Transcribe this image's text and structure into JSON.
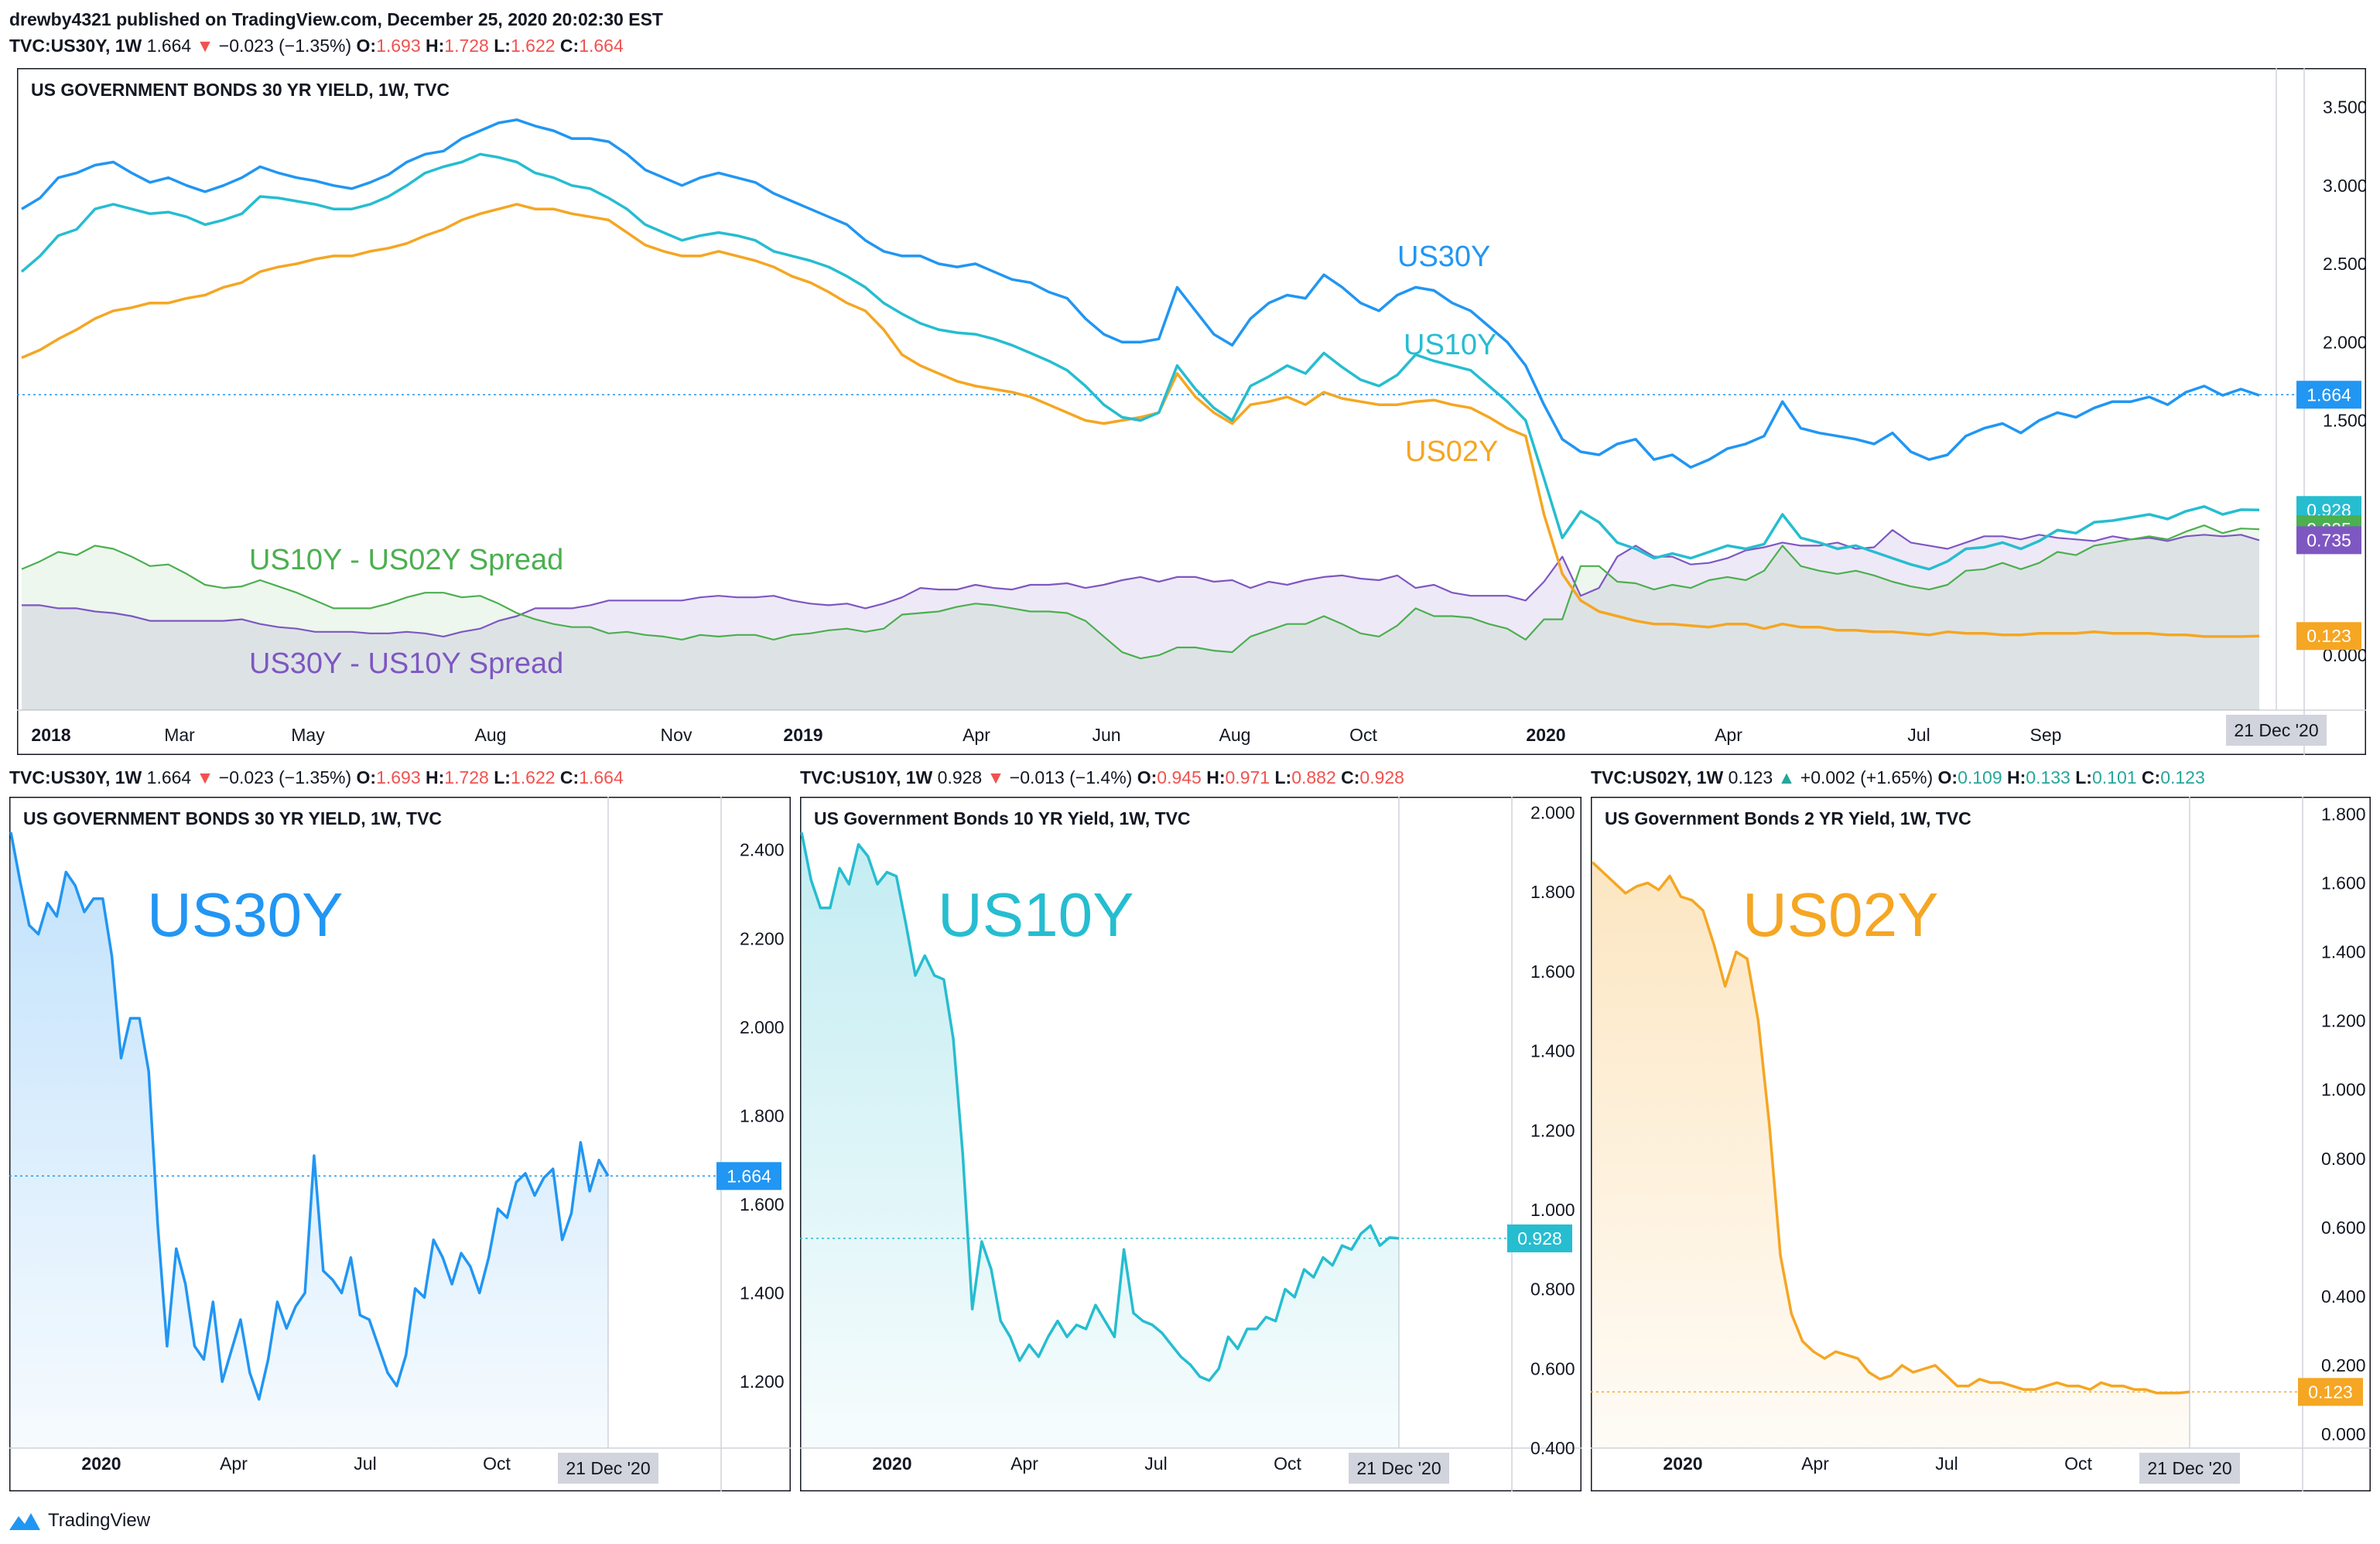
{
  "header": {
    "line1": "drewby4321 published on TradingView.com, December 25, 2020 20:02:30 EST",
    "ticker": "TVC:US30Y, 1W",
    "last": "1.664",
    "arrow": "▼",
    "change": "−0.023 (−1.35%)",
    "o_label": "O:",
    "o": "1.693",
    "h_label": "H:",
    "h": "1.728",
    "l_label": "L:",
    "l": "1.622",
    "c_label": "C:",
    "c": "1.664"
  },
  "subheaders": [
    {
      "ticker": "TVC:US30Y, 1W",
      "last": "1.664",
      "arrow": "▼",
      "change": "−0.023 (−1.35%)",
      "o": "1.693",
      "h": "1.728",
      "l": "1.622",
      "c": "1.664",
      "dir": "down"
    },
    {
      "ticker": "TVC:US10Y, 1W",
      "last": "0.928",
      "arrow": "▼",
      "change": "−0.013 (−1.4%)",
      "o": "0.945",
      "h": "0.971",
      "l": "0.882",
      "c": "0.928",
      "dir": "down"
    },
    {
      "ticker": "TVC:US02Y, 1W",
      "last": "0.123",
      "arrow": "▲",
      "change": "+0.002 (+1.65%)",
      "o": "0.109",
      "h": "0.133",
      "l": "0.101",
      "c": "0.123",
      "dir": "up"
    }
  ],
  "footer": {
    "brand": "TradingView"
  },
  "colors": {
    "us30": "#2196f3",
    "us10": "#26bdd0",
    "us02": "#f5a623",
    "spread1": "#4caf50",
    "spread2": "#7e57c2",
    "grid": "#e0e3eb",
    "text": "#131722"
  },
  "chart_data": [
    {
      "type": "line",
      "title": "US GOVERNMENT BONDS 30 YR YIELD, 1W, TVC",
      "x_labels": [
        "2018",
        "Mar",
        "May",
        "Aug",
        "Nov",
        "2019",
        "Apr",
        "Jun",
        "Aug",
        "Oct",
        "2020",
        "Apr",
        "Jul",
        "Sep"
      ],
      "cursor_label": "21 Dec '20",
      "y_ticks": [
        "3.500",
        "3.000",
        "2.500",
        "2.000",
        "1.500",
        "0.000"
      ],
      "ylim": [
        -0.35,
        3.75
      ],
      "annotations": [
        "US30Y",
        "US10Y",
        "US02Y",
        "US10Y - US02Y Spread",
        "US30Y - US10Y Spread"
      ],
      "last_values": {
        "us30": "1.664",
        "us10": "0.928",
        "spread1": "0.805",
        "spread2": "0.735",
        "us02": "0.123"
      },
      "series": [
        {
          "name": "US30Y",
          "color": "#2196f3",
          "values": [
            2.85,
            2.92,
            3.05,
            3.08,
            3.13,
            3.15,
            3.08,
            3.02,
            3.05,
            3.0,
            2.96,
            3.0,
            3.05,
            3.12,
            3.08,
            3.05,
            3.03,
            3.0,
            2.98,
            3.02,
            3.07,
            3.15,
            3.2,
            3.22,
            3.3,
            3.35,
            3.4,
            3.42,
            3.38,
            3.35,
            3.3,
            3.3,
            3.28,
            3.2,
            3.1,
            3.05,
            3.0,
            3.05,
            3.08,
            3.05,
            3.02,
            2.95,
            2.9,
            2.85,
            2.8,
            2.75,
            2.65,
            2.58,
            2.55,
            2.55,
            2.5,
            2.48,
            2.5,
            2.45,
            2.4,
            2.38,
            2.32,
            2.28,
            2.15,
            2.05,
            2.0,
            2.0,
            2.02,
            2.35,
            2.2,
            2.05,
            1.98,
            2.15,
            2.25,
            2.3,
            2.28,
            2.43,
            2.35,
            2.25,
            2.2,
            2.3,
            2.35,
            2.33,
            2.25,
            2.2,
            2.1,
            2.0,
            1.85,
            1.6,
            1.38,
            1.3,
            1.28,
            1.35,
            1.38,
            1.25,
            1.28,
            1.2,
            1.25,
            1.32,
            1.35,
            1.4,
            1.62,
            1.45,
            1.42,
            1.4,
            1.38,
            1.35,
            1.42,
            1.3,
            1.25,
            1.28,
            1.4,
            1.45,
            1.48,
            1.42,
            1.5,
            1.55,
            1.52,
            1.58,
            1.62,
            1.62,
            1.65,
            1.6,
            1.68,
            1.72,
            1.66,
            1.7,
            1.66
          ]
        },
        {
          "name": "US10Y",
          "color": "#26bdd0",
          "values": [
            2.45,
            2.55,
            2.68,
            2.72,
            2.85,
            2.88,
            2.85,
            2.82,
            2.83,
            2.8,
            2.75,
            2.78,
            2.82,
            2.93,
            2.92,
            2.9,
            2.88,
            2.85,
            2.85,
            2.88,
            2.93,
            3.0,
            3.08,
            3.12,
            3.15,
            3.2,
            3.18,
            3.15,
            3.08,
            3.05,
            3.0,
            2.98,
            2.92,
            2.85,
            2.75,
            2.7,
            2.65,
            2.68,
            2.7,
            2.68,
            2.65,
            2.58,
            2.55,
            2.52,
            2.48,
            2.42,
            2.35,
            2.25,
            2.18,
            2.12,
            2.08,
            2.06,
            2.05,
            2.02,
            1.98,
            1.93,
            1.88,
            1.82,
            1.72,
            1.6,
            1.52,
            1.5,
            1.55,
            1.85,
            1.7,
            1.58,
            1.5,
            1.72,
            1.78,
            1.85,
            1.8,
            1.93,
            1.84,
            1.76,
            1.72,
            1.79,
            1.92,
            1.88,
            1.85,
            1.82,
            1.72,
            1.62,
            1.5,
            1.13,
            0.75,
            0.92,
            0.85,
            0.72,
            0.68,
            0.62,
            0.65,
            0.62,
            0.66,
            0.7,
            0.68,
            0.71,
            0.9,
            0.75,
            0.72,
            0.68,
            0.7,
            0.66,
            0.62,
            0.58,
            0.55,
            0.6,
            0.68,
            0.69,
            0.72,
            0.68,
            0.73,
            0.8,
            0.78,
            0.85,
            0.86,
            0.88,
            0.9,
            0.87,
            0.92,
            0.95,
            0.9,
            0.93,
            0.928
          ]
        },
        {
          "name": "US02Y",
          "color": "#f5a623",
          "values": [
            1.9,
            1.95,
            2.02,
            2.08,
            2.15,
            2.2,
            2.22,
            2.25,
            2.25,
            2.28,
            2.3,
            2.35,
            2.38,
            2.45,
            2.48,
            2.5,
            2.53,
            2.55,
            2.55,
            2.58,
            2.6,
            2.63,
            2.68,
            2.72,
            2.78,
            2.82,
            2.85,
            2.88,
            2.85,
            2.85,
            2.82,
            2.8,
            2.78,
            2.7,
            2.62,
            2.58,
            2.55,
            2.55,
            2.58,
            2.55,
            2.52,
            2.48,
            2.42,
            2.38,
            2.32,
            2.25,
            2.2,
            2.08,
            1.92,
            1.85,
            1.8,
            1.75,
            1.72,
            1.7,
            1.68,
            1.65,
            1.6,
            1.55,
            1.5,
            1.48,
            1.5,
            1.52,
            1.55,
            1.8,
            1.65,
            1.55,
            1.48,
            1.6,
            1.62,
            1.65,
            1.6,
            1.68,
            1.64,
            1.62,
            1.6,
            1.6,
            1.62,
            1.63,
            1.6,
            1.58,
            1.52,
            1.45,
            1.4,
            0.9,
            0.52,
            0.35,
            0.28,
            0.25,
            0.22,
            0.2,
            0.2,
            0.19,
            0.18,
            0.2,
            0.2,
            0.17,
            0.2,
            0.18,
            0.18,
            0.16,
            0.16,
            0.15,
            0.15,
            0.14,
            0.13,
            0.15,
            0.14,
            0.14,
            0.13,
            0.13,
            0.14,
            0.14,
            0.14,
            0.15,
            0.14,
            0.14,
            0.14,
            0.13,
            0.13,
            0.12,
            0.12,
            0.12,
            0.123
          ]
        },
        {
          "name": "US10Y - US02Y Spread",
          "color": "#4caf50",
          "values": [
            0.55,
            0.6,
            0.66,
            0.64,
            0.7,
            0.68,
            0.63,
            0.57,
            0.58,
            0.52,
            0.45,
            0.43,
            0.44,
            0.48,
            0.44,
            0.4,
            0.35,
            0.3,
            0.3,
            0.3,
            0.33,
            0.37,
            0.4,
            0.4,
            0.37,
            0.38,
            0.33,
            0.27,
            0.23,
            0.2,
            0.18,
            0.18,
            0.14,
            0.15,
            0.13,
            0.12,
            0.1,
            0.13,
            0.12,
            0.13,
            0.13,
            0.1,
            0.13,
            0.14,
            0.16,
            0.17,
            0.15,
            0.17,
            0.26,
            0.27,
            0.28,
            0.31,
            0.33,
            0.32,
            0.3,
            0.28,
            0.28,
            0.27,
            0.22,
            0.12,
            0.02,
            -0.02,
            0.0,
            0.05,
            0.05,
            0.03,
            0.02,
            0.12,
            0.16,
            0.2,
            0.2,
            0.25,
            0.2,
            0.14,
            0.12,
            0.19,
            0.3,
            0.25,
            0.25,
            0.24,
            0.2,
            0.17,
            0.1,
            0.23,
            0.23,
            0.57,
            0.57,
            0.47,
            0.46,
            0.42,
            0.45,
            0.43,
            0.48,
            0.5,
            0.48,
            0.54,
            0.7,
            0.57,
            0.54,
            0.52,
            0.54,
            0.51,
            0.47,
            0.44,
            0.42,
            0.45,
            0.54,
            0.55,
            0.59,
            0.55,
            0.59,
            0.66,
            0.64,
            0.7,
            0.72,
            0.74,
            0.76,
            0.74,
            0.79,
            0.83,
            0.78,
            0.81,
            0.805
          ]
        },
        {
          "name": "US30Y - US10Y Spread",
          "color": "#7e57c2",
          "values": [
            0.32,
            0.32,
            0.3,
            0.3,
            0.28,
            0.27,
            0.25,
            0.22,
            0.22,
            0.22,
            0.22,
            0.22,
            0.23,
            0.2,
            0.18,
            0.17,
            0.15,
            0.15,
            0.15,
            0.14,
            0.14,
            0.15,
            0.14,
            0.12,
            0.15,
            0.17,
            0.22,
            0.25,
            0.3,
            0.3,
            0.3,
            0.32,
            0.35,
            0.35,
            0.35,
            0.35,
            0.35,
            0.37,
            0.38,
            0.37,
            0.37,
            0.38,
            0.35,
            0.33,
            0.32,
            0.33,
            0.3,
            0.33,
            0.37,
            0.43,
            0.42,
            0.42,
            0.45,
            0.43,
            0.42,
            0.45,
            0.45,
            0.46,
            0.43,
            0.45,
            0.48,
            0.5,
            0.47,
            0.5,
            0.5,
            0.47,
            0.48,
            0.43,
            0.47,
            0.45,
            0.48,
            0.5,
            0.51,
            0.49,
            0.48,
            0.51,
            0.43,
            0.45,
            0.4,
            0.38,
            0.38,
            0.38,
            0.35,
            0.47,
            0.63,
            0.38,
            0.43,
            0.63,
            0.7,
            0.63,
            0.63,
            0.58,
            0.59,
            0.62,
            0.67,
            0.69,
            0.72,
            0.7,
            0.7,
            0.72,
            0.68,
            0.69,
            0.8,
            0.72,
            0.7,
            0.68,
            0.72,
            0.76,
            0.76,
            0.74,
            0.77,
            0.75,
            0.74,
            0.73,
            0.76,
            0.74,
            0.75,
            0.73,
            0.76,
            0.77,
            0.76,
            0.77,
            0.735
          ]
        }
      ]
    },
    {
      "type": "area",
      "title": "US GOVERNMENT BONDS 30 YR YIELD, 1W, TVC",
      "label": "US30Y",
      "x_labels": [
        "2020",
        "Apr",
        "Jul",
        "Oct"
      ],
      "cursor_label": "21 Dec '20",
      "y_ticks": [
        "2.400",
        "2.200",
        "2.000",
        "1.800",
        "1.600",
        "1.400",
        "1.200"
      ],
      "ylim": [
        1.05,
        2.52
      ],
      "last_value": "1.664",
      "color": "#2196f3",
      "values": [
        2.44,
        2.33,
        2.23,
        2.21,
        2.28,
        2.25,
        2.35,
        2.32,
        2.26,
        2.29,
        2.29,
        2.16,
        1.93,
        2.02,
        2.02,
        1.9,
        1.55,
        1.28,
        1.5,
        1.42,
        1.28,
        1.25,
        1.38,
        1.2,
        1.27,
        1.34,
        1.22,
        1.16,
        1.25,
        1.38,
        1.32,
        1.37,
        1.4,
        1.71,
        1.45,
        1.43,
        1.4,
        1.48,
        1.35,
        1.34,
        1.28,
        1.22,
        1.19,
        1.26,
        1.41,
        1.39,
        1.52,
        1.48,
        1.42,
        1.49,
        1.46,
        1.4,
        1.48,
        1.59,
        1.57,
        1.65,
        1.67,
        1.62,
        1.66,
        1.68,
        1.52,
        1.58,
        1.74,
        1.63,
        1.7,
        1.664
      ]
    },
    {
      "type": "area",
      "title": "US Government Bonds 10 YR Yield, 1W, TVC",
      "label": "US10Y",
      "x_labels": [
        "2020",
        "Apr",
        "Jul",
        "Oct"
      ],
      "cursor_label": "21 Dec '20",
      "y_ticks": [
        "2.000",
        "1.800",
        "1.600",
        "1.400",
        "1.200",
        "1.000",
        "0.800",
        "0.600",
        "0.400"
      ],
      "ylim": [
        0.4,
        2.04
      ],
      "last_value": "0.928",
      "color": "#26bdd0",
      "values": [
        1.95,
        1.83,
        1.76,
        1.76,
        1.86,
        1.82,
        1.92,
        1.89,
        1.82,
        1.85,
        1.84,
        1.72,
        1.59,
        1.64,
        1.59,
        1.58,
        1.43,
        1.14,
        0.75,
        0.92,
        0.85,
        0.72,
        0.68,
        0.62,
        0.66,
        0.63,
        0.68,
        0.72,
        0.68,
        0.71,
        0.7,
        0.76,
        0.72,
        0.68,
        0.9,
        0.74,
        0.72,
        0.71,
        0.69,
        0.66,
        0.63,
        0.61,
        0.58,
        0.57,
        0.6,
        0.68,
        0.65,
        0.7,
        0.7,
        0.73,
        0.72,
        0.8,
        0.78,
        0.85,
        0.83,
        0.88,
        0.86,
        0.91,
        0.9,
        0.94,
        0.96,
        0.91,
        0.93,
        0.928
      ]
    },
    {
      "type": "area",
      "title": "US Government Bonds 2 YR Yield, 1W, TVC",
      "label": "US02Y",
      "x_labels": [
        "2020",
        "Apr",
        "Jul",
        "Oct"
      ],
      "cursor_label": "21 Dec '20",
      "y_ticks": [
        "1.800",
        "1.600",
        "1.400",
        "1.200",
        "1.000",
        "0.800",
        "0.600",
        "0.400",
        "0.200",
        "0.000"
      ],
      "ylim": [
        -0.04,
        1.85
      ],
      "last_value": "0.123",
      "color": "#f5a623",
      "values": [
        1.66,
        1.63,
        1.6,
        1.57,
        1.59,
        1.6,
        1.58,
        1.62,
        1.56,
        1.55,
        1.52,
        1.42,
        1.3,
        1.4,
        1.38,
        1.2,
        0.9,
        0.52,
        0.35,
        0.27,
        0.24,
        0.22,
        0.24,
        0.23,
        0.22,
        0.18,
        0.16,
        0.17,
        0.2,
        0.18,
        0.19,
        0.2,
        0.17,
        0.14,
        0.14,
        0.16,
        0.15,
        0.15,
        0.14,
        0.13,
        0.13,
        0.14,
        0.15,
        0.14,
        0.14,
        0.13,
        0.15,
        0.14,
        0.14,
        0.13,
        0.13,
        0.12,
        0.12,
        0.12,
        0.123
      ]
    }
  ]
}
